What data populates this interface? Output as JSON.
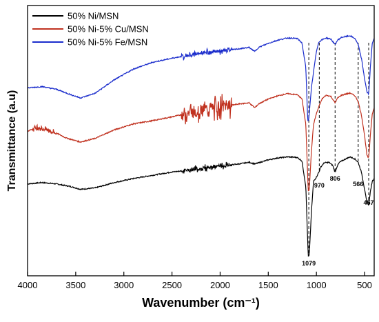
{
  "chart_data": {
    "type": "line",
    "title": "",
    "xlabel": "Wavenumber (cm⁻¹)",
    "ylabel": "Transmittance (a.u)",
    "xlim": [
      4000,
      400
    ],
    "x_ticks": [
      4000,
      3500,
      3000,
      2500,
      2000,
      1500,
      1000,
      500
    ],
    "y_ticks": "none",
    "grid": false,
    "legend": "top-left",
    "series": [
      {
        "name": "50% Ni/MSN",
        "color": "#000000",
        "noisy_range": [
          1880,
          2400
        ],
        "points": [
          [
            4000,
            0.34
          ],
          [
            3850,
            0.345
          ],
          [
            3700,
            0.34
          ],
          [
            3550,
            0.33
          ],
          [
            3450,
            0.32
          ],
          [
            3300,
            0.325
          ],
          [
            3100,
            0.345
          ],
          [
            2900,
            0.36
          ],
          [
            2700,
            0.372
          ],
          [
            2500,
            0.384
          ],
          [
            2300,
            0.392
          ],
          [
            2100,
            0.402
          ],
          [
            1900,
            0.41
          ],
          [
            1800,
            0.414
          ],
          [
            1700,
            0.42
          ],
          [
            1640,
            0.414
          ],
          [
            1600,
            0.418
          ],
          [
            1500,
            0.429
          ],
          [
            1400,
            0.436
          ],
          [
            1300,
            0.44
          ],
          [
            1200,
            0.438
          ],
          [
            1150,
            0.425
          ],
          [
            1110,
            0.33
          ],
          [
            1085,
            0.072
          ],
          [
            1075,
            0.075
          ],
          [
            1050,
            0.245
          ],
          [
            1030,
            0.35
          ],
          [
            1000,
            0.365
          ],
          [
            980,
            0.38
          ],
          [
            970,
            0.386
          ],
          [
            960,
            0.4
          ],
          [
            920,
            0.418
          ],
          [
            870,
            0.42
          ],
          [
            830,
            0.408
          ],
          [
            806,
            0.382
          ],
          [
            785,
            0.405
          ],
          [
            760,
            0.42
          ],
          [
            700,
            0.432
          ],
          [
            650,
            0.44
          ],
          [
            600,
            0.432
          ],
          [
            566,
            0.42
          ],
          [
            530,
            0.38
          ],
          [
            500,
            0.32
          ],
          [
            475,
            0.27
          ],
          [
            457,
            0.262
          ],
          [
            440,
            0.31
          ],
          [
            420,
            0.35
          ],
          [
            400,
            0.36
          ]
        ]
      },
      {
        "name": "50% Ni-5% Cu/MSN",
        "color": "#c0311f",
        "noisy_range": [
          1880,
          2400
        ],
        "points": [
          [
            4000,
            0.535
          ],
          [
            3900,
            0.55
          ],
          [
            3800,
            0.54
          ],
          [
            3700,
            0.528
          ],
          [
            3600,
            0.51
          ],
          [
            3450,
            0.495
          ],
          [
            3300,
            0.508
          ],
          [
            3100,
            0.54
          ],
          [
            2900,
            0.562
          ],
          [
            2700,
            0.574
          ],
          [
            2500,
            0.588
          ],
          [
            2300,
            0.605
          ],
          [
            2100,
            0.62
          ],
          [
            1900,
            0.63
          ],
          [
            1800,
            0.636
          ],
          [
            1700,
            0.64
          ],
          [
            1640,
            0.622
          ],
          [
            1600,
            0.636
          ],
          [
            1500,
            0.654
          ],
          [
            1400,
            0.666
          ],
          [
            1300,
            0.674
          ],
          [
            1200,
            0.67
          ],
          [
            1150,
            0.655
          ],
          [
            1110,
            0.56
          ],
          [
            1085,
            0.315
          ],
          [
            1075,
            0.318
          ],
          [
            1050,
            0.47
          ],
          [
            1030,
            0.56
          ],
          [
            1000,
            0.6
          ],
          [
            970,
            0.63
          ],
          [
            940,
            0.655
          ],
          [
            900,
            0.668
          ],
          [
            850,
            0.664
          ],
          [
            806,
            0.64
          ],
          [
            780,
            0.658
          ],
          [
            740,
            0.668
          ],
          [
            700,
            0.672
          ],
          [
            650,
            0.676
          ],
          [
            600,
            0.666
          ],
          [
            566,
            0.645
          ],
          [
            530,
            0.59
          ],
          [
            500,
            0.52
          ],
          [
            475,
            0.445
          ],
          [
            457,
            0.435
          ],
          [
            440,
            0.52
          ],
          [
            420,
            0.6
          ],
          [
            400,
            0.62
          ]
        ]
      },
      {
        "name": "50% Ni-5% Fe/MSN",
        "color": "#1a2ccc",
        "noisy_range": [
          1880,
          2400
        ],
        "points": [
          [
            4000,
            0.695
          ],
          [
            3850,
            0.7
          ],
          [
            3700,
            0.69
          ],
          [
            3550,
            0.67
          ],
          [
            3450,
            0.658
          ],
          [
            3300,
            0.675
          ],
          [
            3100,
            0.725
          ],
          [
            2900,
            0.765
          ],
          [
            2700,
            0.79
          ],
          [
            2500,
            0.805
          ],
          [
            2300,
            0.818
          ],
          [
            2100,
            0.828
          ],
          [
            1900,
            0.835
          ],
          [
            1800,
            0.84
          ],
          [
            1700,
            0.845
          ],
          [
            1640,
            0.83
          ],
          [
            1600,
            0.845
          ],
          [
            1500,
            0.86
          ],
          [
            1400,
            0.872
          ],
          [
            1300,
            0.88
          ],
          [
            1200,
            0.878
          ],
          [
            1150,
            0.862
          ],
          [
            1110,
            0.77
          ],
          [
            1090,
            0.575
          ],
          [
            1080,
            0.578
          ],
          [
            1050,
            0.7
          ],
          [
            1020,
            0.78
          ],
          [
            1000,
            0.83
          ],
          [
            980,
            0.86
          ],
          [
            970,
            0.865
          ],
          [
            950,
            0.872
          ],
          [
            900,
            0.88
          ],
          [
            850,
            0.876
          ],
          [
            806,
            0.855
          ],
          [
            780,
            0.872
          ],
          [
            740,
            0.882
          ],
          [
            700,
            0.885
          ],
          [
            650,
            0.888
          ],
          [
            600,
            0.878
          ],
          [
            566,
            0.855
          ],
          [
            530,
            0.8
          ],
          [
            500,
            0.73
          ],
          [
            475,
            0.68
          ],
          [
            457,
            0.672
          ],
          [
            440,
            0.77
          ],
          [
            420,
            0.86
          ],
          [
            400,
            0.88
          ]
        ]
      }
    ],
    "annotations": [
      {
        "label": "1079",
        "x": 1079
      },
      {
        "label": "970",
        "x": 970
      },
      {
        "label": "806",
        "x": 806
      },
      {
        "label": "566",
        "x": 566
      },
      {
        "label": "457",
        "x": 457
      }
    ]
  }
}
